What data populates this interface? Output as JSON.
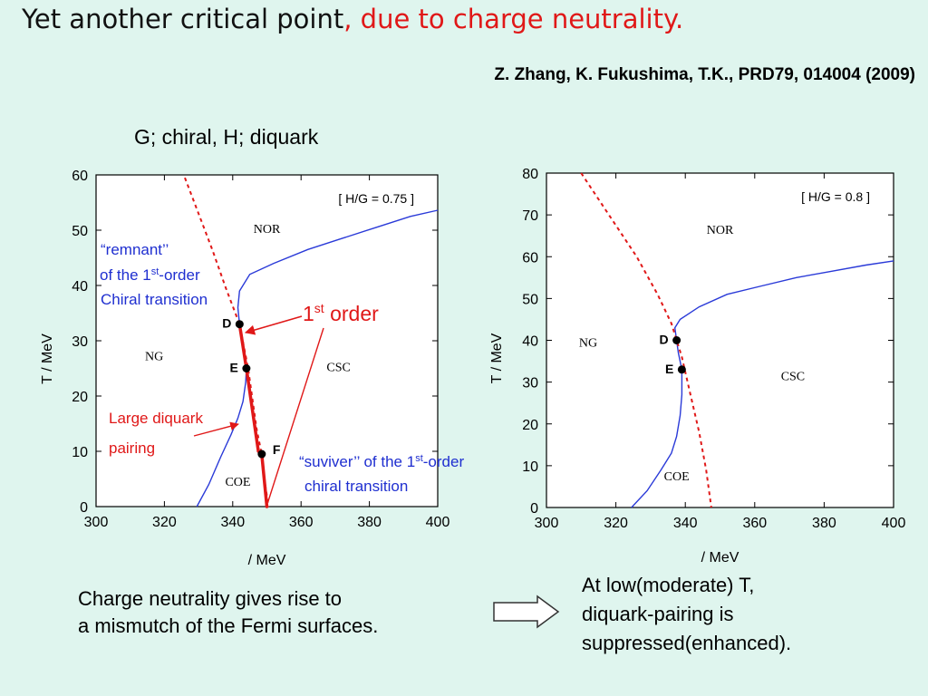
{
  "slide": {
    "title_main": "Yet another critical point",
    "title_accent": ", due to charge neutrality.",
    "reference": "Z. Zhang, K. Fukushima, T.K., PRD79, 014004 (2009)",
    "subhead": "G; chiral,  H; diquark",
    "bottom_left": [
      "Charge neutrality gives rise to",
      "a mismutch of the Fermi surfaces."
    ],
    "bottom_right": [
      "At low(moderate) T,",
      "diquark-pairing is",
      "suppressed(enhanced)."
    ]
  },
  "colors": {
    "background": "#dff5ee",
    "red": "#e01818",
    "blue": "#1f2fd0",
    "chiral_line": "#2a3ad8",
    "diquark_line": "#e01818"
  },
  "chart_data": [
    {
      "type": "line",
      "xlim": [
        300,
        400
      ],
      "ylim": [
        0,
        60
      ],
      "x_ticks": [
        300,
        320,
        340,
        360,
        380,
        400
      ],
      "y_ticks": [
        0,
        10,
        20,
        30,
        40,
        50,
        60
      ],
      "xlabel": "/ MeV",
      "ylabel": "T / MeV",
      "box_label": "[ H/G  =  0.75 ]",
      "regions": [
        {
          "name": "NOR",
          "x": 350,
          "y": 49.5
        },
        {
          "name": "NG",
          "x": 317,
          "y": 26.5
        },
        {
          "name": "CSC",
          "x": 371,
          "y": 24.5
        },
        {
          "name": "COE",
          "x": 341.5,
          "y": 3.8
        }
      ],
      "series": [
        {
          "style": "chiral-solid",
          "points": [
            [
              329.5,
              0
            ],
            [
              333,
              4
            ],
            [
              336.5,
              9
            ],
            [
              339.5,
              13
            ],
            [
              341.5,
              16
            ],
            [
              343,
              19
            ],
            [
              343.8,
              22.5
            ],
            [
              344,
              25
            ],
            [
              343.5,
              28
            ],
            [
              342.5,
              31
            ],
            [
              342,
              33
            ],
            [
              341.5,
              36
            ],
            [
              342,
              39
            ],
            [
              345,
              42
            ],
            [
              352,
              44
            ],
            [
              362,
              46.5
            ],
            [
              372,
              48.5
            ],
            [
              382,
              50.5
            ],
            [
              392,
              52.5
            ],
            [
              400,
              53.6
            ]
          ]
        },
        {
          "style": "diquark-dashed",
          "points": [
            [
              326,
              59.5
            ],
            [
              330,
              53
            ],
            [
              334,
              46.5
            ],
            [
              338,
              39.5
            ],
            [
              342,
              33
            ],
            [
              344.5,
              25
            ],
            [
              347,
              14
            ],
            [
              348.5,
              9.5
            ],
            [
              349.5,
              4
            ],
            [
              350.5,
              0
            ]
          ]
        },
        {
          "style": "first-order-thick",
          "points": [
            [
              342,
              33
            ],
            [
              344,
              25
            ],
            [
              347.5,
              10
            ],
            [
              348.5,
              9.5
            ],
            [
              350,
              0
            ]
          ]
        }
      ],
      "critical_points": [
        {
          "name": "D",
          "x": 342,
          "y": 33
        },
        {
          "name": "E",
          "x": 344,
          "y": 25
        },
        {
          "name": "F",
          "x": 348.5,
          "y": 9.5
        }
      ],
      "annotations": {
        "remnant_lines": [
          "“remnant’’",
          "of the 1",
          "-order",
          "Chiral transition"
        ],
        "remnant_sup": "st",
        "first_order": "1",
        "first_order_sup": "st",
        "first_order_suffix": " order",
        "large_diquark": [
          "Large diquark",
          "pairing"
        ],
        "suviver_lines": [
          "“suviver’’ of the 1",
          "-order",
          "chiral transition"
        ],
        "suviver_sup": "st"
      }
    },
    {
      "type": "line",
      "xlim": [
        300,
        400
      ],
      "ylim": [
        0,
        80
      ],
      "x_ticks": [
        300,
        320,
        340,
        360,
        380,
        400
      ],
      "y_ticks": [
        0,
        10,
        20,
        30,
        40,
        50,
        60,
        70,
        80
      ],
      "xlabel": "/ MeV",
      "ylabel": "T / MeV",
      "box_label": "[ H/G  =  0.8 ]",
      "regions": [
        {
          "name": "NOR",
          "x": 350,
          "y": 65.5
        },
        {
          "name": "NG",
          "x": 312,
          "y": 38.5
        },
        {
          "name": "CSC",
          "x": 371,
          "y": 30.5
        },
        {
          "name": "COE",
          "x": 337.5,
          "y": 6.5
        }
      ],
      "series": [
        {
          "style": "chiral-solid",
          "points": [
            [
              324.5,
              0
            ],
            [
              329,
              4
            ],
            [
              333,
              9
            ],
            [
              336,
              13
            ],
            [
              337.5,
              17
            ],
            [
              338.5,
              22
            ],
            [
              339,
              27
            ],
            [
              339,
              33
            ],
            [
              338,
              37
            ],
            [
              337.5,
              40
            ],
            [
              337,
              43
            ],
            [
              338.5,
              45
            ],
            [
              344,
              48
            ],
            [
              352,
              51
            ],
            [
              362,
              53
            ],
            [
              372,
              55
            ],
            [
              382,
              56.5
            ],
            [
              392,
              58
            ],
            [
              400,
              59
            ]
          ]
        },
        {
          "style": "diquark-dashed",
          "points": [
            [
              310,
              80
            ],
            [
              318,
              70
            ],
            [
              326,
              60
            ],
            [
              332,
              51
            ],
            [
              336,
              44
            ],
            [
              339,
              36
            ],
            [
              341.5,
              27
            ],
            [
              344,
              18
            ],
            [
              346,
              9
            ],
            [
              347.5,
              0
            ]
          ]
        }
      ],
      "critical_points": [
        {
          "name": "D",
          "x": 337.5,
          "y": 40
        },
        {
          "name": "E",
          "x": 339,
          "y": 33
        }
      ]
    }
  ]
}
